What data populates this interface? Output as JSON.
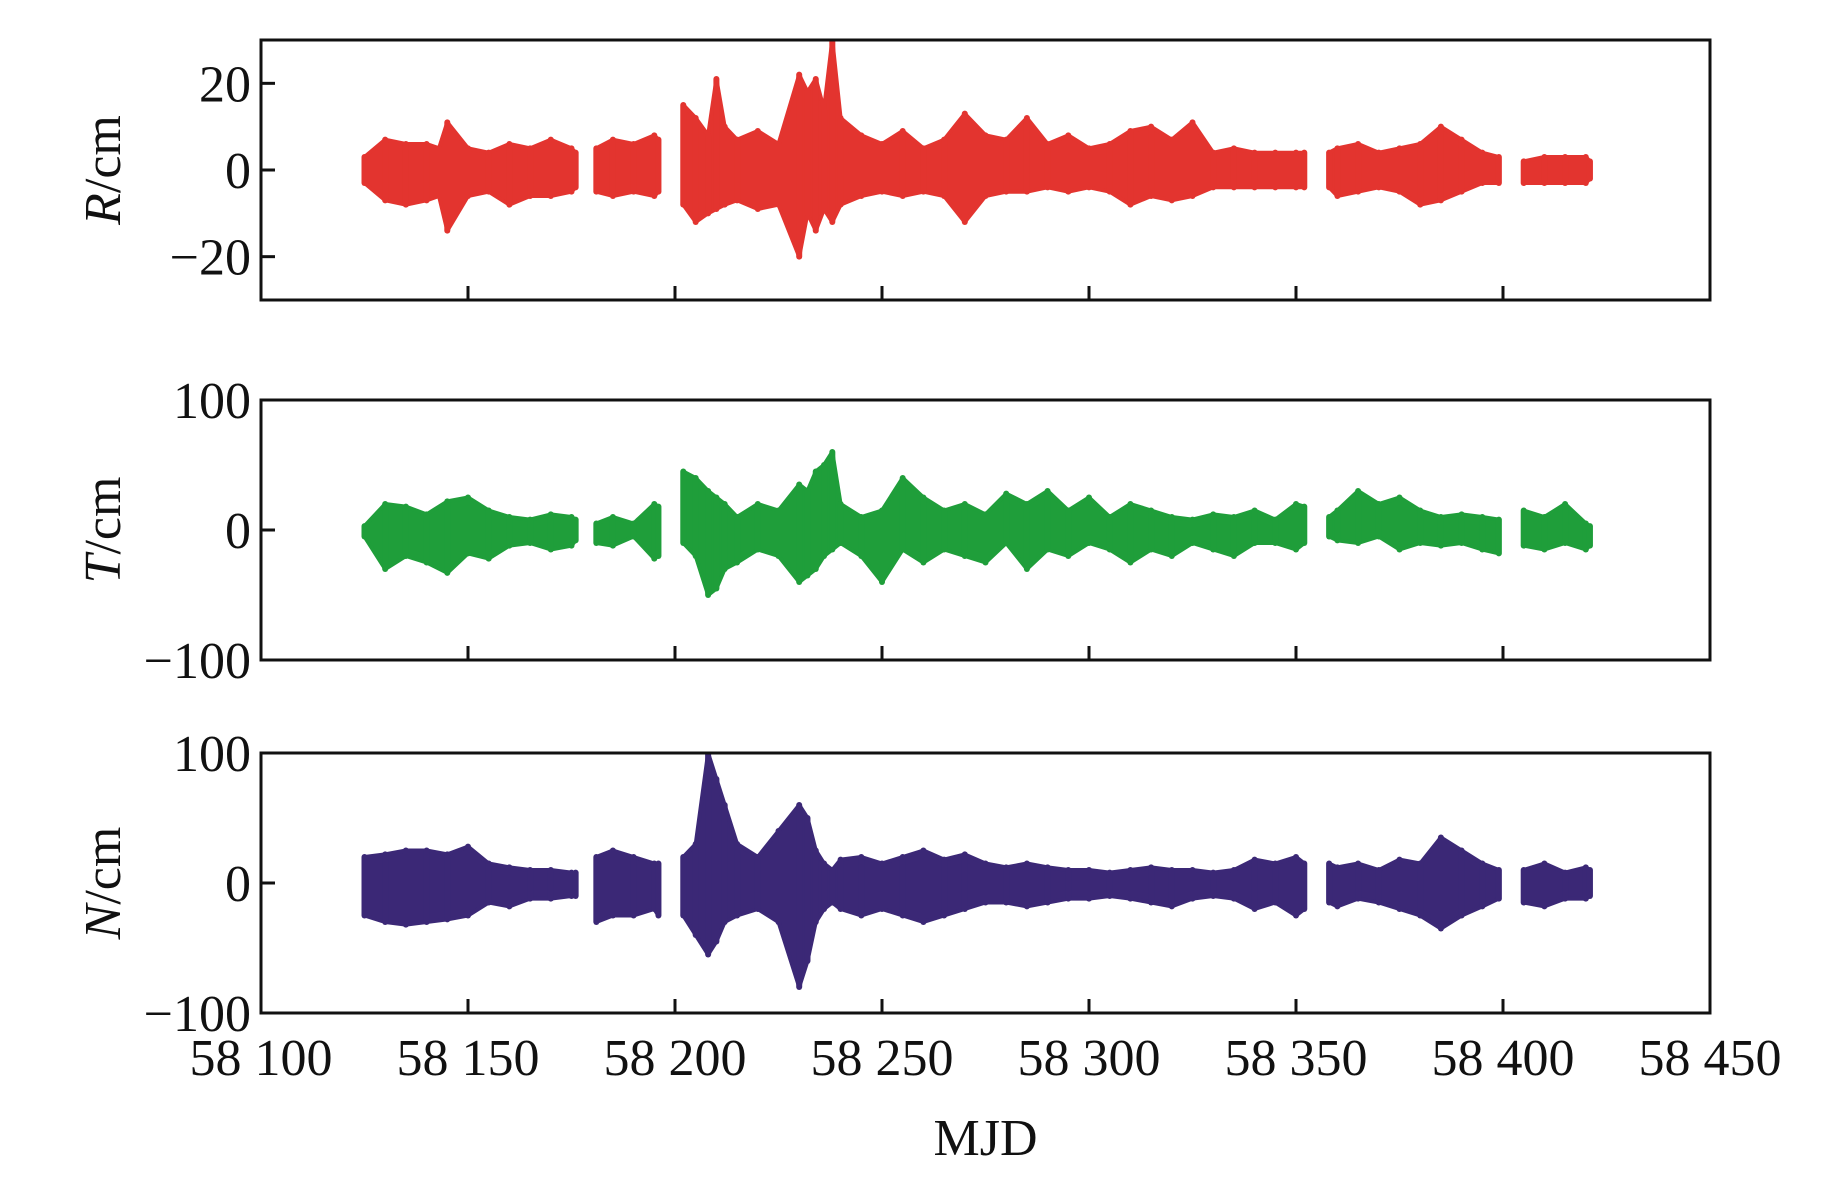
{
  "chart_data": [
    {
      "type": "area",
      "panel": "R",
      "ylabel_italic": "R",
      "ylabel_unit": "/cm",
      "xlim": [
        58100,
        58450
      ],
      "ylim": [
        -30,
        30
      ],
      "yticks": [
        20,
        0,
        -20
      ],
      "ytick_labels": [
        "20",
        "0",
        "−20"
      ],
      "color": "#e3342f",
      "segments": [
        {
          "x": [
            58125,
            58130,
            58135,
            58140,
            58143,
            58145,
            58150,
            58155,
            58160,
            58165,
            58170,
            58175,
            58176
          ],
          "hi": [
            3,
            7,
            6,
            6,
            5,
            11,
            5,
            4,
            6,
            5,
            7,
            5,
            4
          ],
          "lo": [
            -3,
            -7,
            -8,
            -7,
            -6,
            -14,
            -6,
            -5,
            -8,
            -6,
            -6,
            -5,
            -4
          ]
        },
        {
          "x": [
            58181,
            58185,
            58190,
            58195,
            58196
          ],
          "hi": [
            5,
            7,
            6,
            8,
            7
          ],
          "lo": [
            -5,
            -6,
            -5,
            -6,
            -5
          ]
        },
        {
          "x": [
            58202,
            58205,
            58208,
            58210,
            58212,
            58215,
            58220,
            58225,
            58230,
            58232,
            58234,
            58236,
            58238,
            58240,
            58245,
            58250,
            58255,
            58260,
            58265,
            58270,
            58275,
            58280,
            58285,
            58290,
            58295,
            58300,
            58305,
            58310,
            58315,
            58320,
            58325,
            58330,
            58335,
            58340,
            58345,
            58350,
            58352
          ],
          "hi": [
            15,
            12,
            8,
            21,
            10,
            7,
            9,
            6,
            22,
            18,
            21,
            14,
            30,
            12,
            8,
            6,
            9,
            5,
            7,
            13,
            8,
            7,
            12,
            6,
            8,
            5,
            6,
            9,
            10,
            7,
            11,
            4,
            5,
            4,
            4,
            4,
            4
          ],
          "lo": [
            -8,
            -12,
            -10,
            -9,
            -8,
            -7,
            -9,
            -8,
            -20,
            -10,
            -14,
            -9,
            -12,
            -8,
            -6,
            -5,
            -6,
            -5,
            -6,
            -12,
            -6,
            -5,
            -5,
            -4,
            -5,
            -4,
            -5,
            -8,
            -6,
            -7,
            -6,
            -4,
            -4,
            -4,
            -4,
            -4,
            -4
          ]
        },
        {
          "x": [
            58358,
            58360,
            58365,
            58370,
            58375,
            58380,
            58385,
            58390,
            58395,
            58399
          ],
          "hi": [
            4,
            5,
            6,
            4,
            5,
            6,
            10,
            7,
            4,
            3
          ],
          "lo": [
            -4,
            -6,
            -5,
            -4,
            -5,
            -8,
            -7,
            -5,
            -3,
            -3
          ]
        },
        {
          "x": [
            58405,
            58410,
            58415,
            58420,
            58421
          ],
          "hi": [
            2,
            3,
            3,
            3,
            2
          ],
          "lo": [
            -3,
            -3,
            -3,
            -3,
            -2
          ]
        }
      ]
    },
    {
      "type": "area",
      "panel": "T",
      "ylabel_italic": "T",
      "ylabel_unit": "/cm",
      "xlim": [
        58100,
        58450
      ],
      "ylim": [
        -100,
        100
      ],
      "yticks": [
        100,
        0,
        -100
      ],
      "ytick_labels": [
        "100",
        "0",
        "−100"
      ],
      "color": "#1f9e3a",
      "segments": [
        {
          "x": [
            58125,
            58130,
            58135,
            58140,
            58145,
            58150,
            58155,
            58160,
            58165,
            58170,
            58175,
            58176
          ],
          "hi": [
            3,
            20,
            18,
            12,
            22,
            25,
            15,
            10,
            8,
            12,
            10,
            8
          ],
          "lo": [
            -5,
            -30,
            -20,
            -25,
            -33,
            -18,
            -22,
            -12,
            -10,
            -15,
            -12,
            -8
          ]
        },
        {
          "x": [
            58181,
            58185,
            58190,
            58195,
            58196
          ],
          "hi": [
            5,
            10,
            5,
            20,
            18
          ],
          "lo": [
            -10,
            -12,
            -5,
            -22,
            -20
          ]
        },
        {
          "x": [
            58202,
            58205,
            58208,
            58210,
            58212,
            58215,
            58220,
            58225,
            58230,
            58232,
            58234,
            58236,
            58238,
            58240,
            58245,
            58250,
            58255,
            58260,
            58265,
            58270,
            58275,
            58280,
            58285,
            58290,
            58295,
            58300,
            58305,
            58310,
            58315,
            58320,
            58325,
            58330,
            58335,
            58340,
            58345,
            58350,
            58352
          ],
          "hi": [
            45,
            40,
            30,
            25,
            20,
            10,
            20,
            15,
            35,
            30,
            45,
            50,
            60,
            20,
            10,
            15,
            40,
            25,
            15,
            20,
            12,
            28,
            20,
            30,
            15,
            25,
            10,
            20,
            15,
            10,
            8,
            12,
            10,
            15,
            8,
            20,
            18
          ],
          "lo": [
            -10,
            -20,
            -50,
            -45,
            -30,
            -25,
            -15,
            -20,
            -40,
            -35,
            -30,
            -20,
            -15,
            -10,
            -20,
            -40,
            -15,
            -25,
            -15,
            -20,
            -25,
            -10,
            -30,
            -15,
            -20,
            -10,
            -15,
            -25,
            -15,
            -20,
            -10,
            -15,
            -20,
            -10,
            -10,
            -15,
            -10
          ]
        },
        {
          "x": [
            58358,
            58360,
            58365,
            58370,
            58375,
            58380,
            58385,
            58390,
            58395,
            58399
          ],
          "hi": [
            10,
            15,
            30,
            20,
            25,
            15,
            10,
            12,
            10,
            8
          ],
          "lo": [
            -5,
            -8,
            -10,
            -5,
            -15,
            -10,
            -12,
            -10,
            -15,
            -18
          ]
        },
        {
          "x": [
            58405,
            58410,
            58415,
            58420,
            58421
          ],
          "hi": [
            15,
            10,
            20,
            5,
            3
          ],
          "lo": [
            -12,
            -15,
            -10,
            -15,
            -12
          ]
        }
      ]
    },
    {
      "type": "area",
      "panel": "N",
      "ylabel_italic": "N",
      "ylabel_unit": "/cm",
      "xlim": [
        58100,
        58450
      ],
      "ylim": [
        -100,
        100
      ],
      "yticks": [
        100,
        0,
        -100
      ],
      "ytick_labels": [
        "100",
        "0",
        "−100"
      ],
      "color": "#3b2876",
      "segments": [
        {
          "x": [
            58125,
            58130,
            58135,
            58140,
            58145,
            58150,
            58155,
            58160,
            58165,
            58170,
            58175,
            58176
          ],
          "hi": [
            20,
            22,
            25,
            25,
            22,
            28,
            15,
            12,
            10,
            10,
            8,
            8
          ],
          "lo": [
            -25,
            -30,
            -32,
            -30,
            -28,
            -25,
            -15,
            -18,
            -12,
            -12,
            -10,
            -10
          ]
        },
        {
          "x": [
            58181,
            58185,
            58190,
            58195,
            58196
          ],
          "hi": [
            20,
            25,
            20,
            15,
            15
          ],
          "lo": [
            -30,
            -25,
            -25,
            -20,
            -25
          ]
        },
        {
          "x": [
            58202,
            58205,
            58208,
            58210,
            58212,
            58215,
            58220,
            58225,
            58230,
            58232,
            58234,
            58236,
            58238,
            58240,
            58245,
            58250,
            58255,
            58260,
            58265,
            58270,
            58275,
            58280,
            58285,
            58290,
            58295,
            58300,
            58305,
            58310,
            58315,
            58320,
            58325,
            58330,
            58335,
            58340,
            58345,
            58350,
            58352
          ],
          "hi": [
            20,
            30,
            100,
            80,
            60,
            30,
            20,
            40,
            60,
            50,
            25,
            15,
            10,
            18,
            20,
            15,
            20,
            25,
            18,
            22,
            15,
            12,
            15,
            12,
            10,
            10,
            8,
            10,
            12,
            10,
            10,
            8,
            10,
            18,
            15,
            20,
            15
          ],
          "lo": [
            -25,
            -40,
            -55,
            -45,
            -30,
            -25,
            -20,
            -30,
            -80,
            -60,
            -30,
            -20,
            -15,
            -20,
            -25,
            -20,
            -25,
            -30,
            -25,
            -20,
            -15,
            -15,
            -18,
            -15,
            -12,
            -12,
            -10,
            -12,
            -15,
            -18,
            -12,
            -10,
            -12,
            -20,
            -15,
            -25,
            -20
          ]
        },
        {
          "x": [
            58358,
            58360,
            58365,
            58370,
            58375,
            58380,
            58385,
            58390,
            58395,
            58399
          ],
          "hi": [
            15,
            12,
            15,
            10,
            18,
            15,
            35,
            25,
            15,
            10
          ],
          "lo": [
            -15,
            -18,
            -12,
            -15,
            -20,
            -25,
            -35,
            -25,
            -18,
            -12
          ]
        },
        {
          "x": [
            58405,
            58410,
            58415,
            58420,
            58421
          ],
          "hi": [
            10,
            15,
            8,
            12,
            10
          ],
          "lo": [
            -15,
            -18,
            -12,
            -12,
            -10
          ]
        }
      ]
    }
  ],
  "xaxis": {
    "xticks": [
      58100,
      58150,
      58200,
      58250,
      58300,
      58350,
      58400,
      58450
    ],
    "xtick_labels": [
      "58 100",
      "58 150",
      "58 200",
      "58 250",
      "58 300",
      "58 350",
      "58 400",
      "58 450"
    ],
    "xlabel": "MJD"
  }
}
